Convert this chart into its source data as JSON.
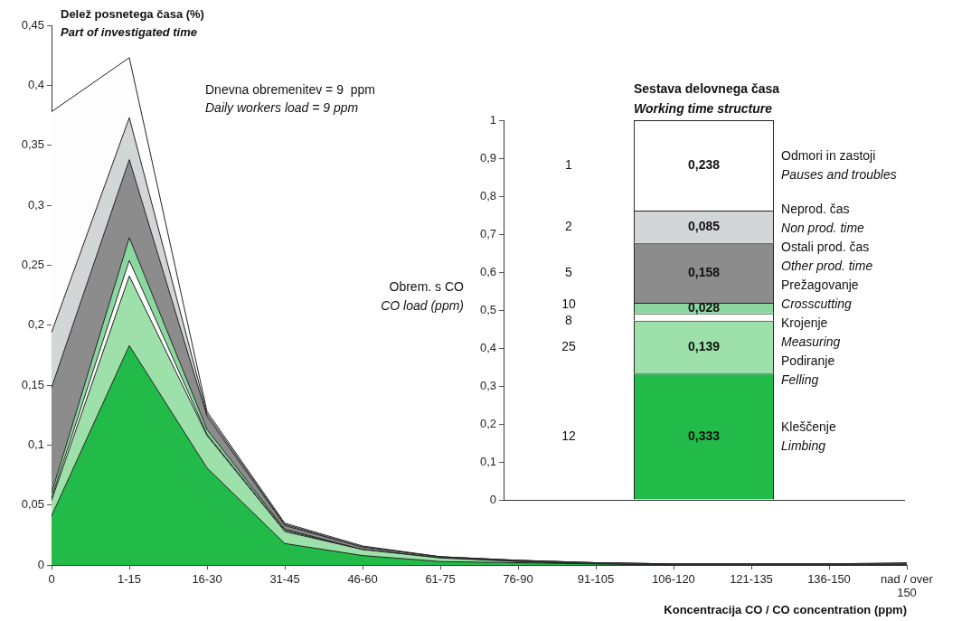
{
  "chart_data": [
    {
      "type": "area",
      "stacked": true,
      "ylabel": "Delež posnetega časa (%)\nPart of investigated time",
      "xlabel": "Koncentracija CO / CO concentration (ppm)",
      "categories": [
        "0",
        "1-15",
        "16-30",
        "31-45",
        "46-60",
        "61-75",
        "76-90",
        "91-105",
        "106-120",
        "121-135",
        "136-150",
        "nad / over 150"
      ],
      "series": [
        {
          "color": "#22bb4a",
          "values": [
            0.041,
            0.183,
            0.081,
            0.018,
            0.008,
            0.003,
            0.002,
            0.001,
            0,
            0,
            0,
            0
          ]
        },
        {
          "color": "#9de0a9",
          "values": [
            0.013,
            0.058,
            0.027,
            0.01,
            0.005,
            0.003,
            0.001,
            0,
            0,
            0,
            0,
            0
          ]
        },
        {
          "color": "#ffffff",
          "values": [
            0.002,
            0.013,
            0.001,
            0.001,
            0,
            0,
            0,
            0,
            0,
            0,
            0,
            0
          ]
        },
        {
          "color": "#8ad8a0",
          "values": [
            0.004,
            0.019,
            0.004,
            0.001,
            0,
            0,
            0,
            0,
            0,
            0,
            0,
            0
          ]
        },
        {
          "color": "#8c8c8c",
          "values": [
            0.088,
            0.065,
            0.011,
            0.003,
            0.002,
            0.001,
            0.001,
            0.001,
            0.001,
            0.001,
            0.001,
            0.001
          ]
        },
        {
          "color": "#d3d6d6",
          "values": [
            0.046,
            0.035,
            0.002,
            0.001,
            0,
            0,
            0,
            0,
            0,
            0,
            0,
            0
          ]
        },
        {
          "color": "#fdfdfd",
          "values": [
            0.184,
            0.05,
            0.002,
            0.001,
            0.001,
            0,
            0,
            0,
            0,
            0,
            0,
            0.001
          ]
        }
      ],
      "ylim": [
        0,
        0.45
      ],
      "yticks": [
        {
          "value": 0,
          "label": "0"
        },
        {
          "value": 0.05,
          "label": "0,05"
        },
        {
          "value": 0.1,
          "label": "0,1"
        },
        {
          "value": 0.15,
          "label": "0,15"
        },
        {
          "value": 0.2,
          "label": "0,2"
        },
        {
          "value": 0.25,
          "label": "0,25"
        },
        {
          "value": 0.3,
          "label": "0,3"
        },
        {
          "value": 0.35,
          "label": "0,35"
        },
        {
          "value": 0.4,
          "label": "0,4"
        },
        {
          "value": 0.45,
          "label": "0,45"
        }
      ],
      "annotations": [
        "Dnevna obremenitev = 9  ppm\nDaily workers load = 9 ppm"
      ],
      "grid": false,
      "legend": false
    },
    {
      "type": "bar",
      "stacked": true,
      "title": "Sestava delovnega časa\nWorking time structure",
      "categories": [
        null
      ],
      "series": [
        {
          "name": "Kleščenje\nLimbing",
          "color": "#22bb4a",
          "values": [
            0.333
          ],
          "value_labels": [
            "0,333"
          ]
        },
        {
          "name": "Podiranje\nFelling",
          "color": "#9de0a9",
          "values": [
            0.139
          ],
          "value_labels": [
            "0,139"
          ]
        },
        {
          "name": "Krojenje\nMeasuring",
          "color": "#ffffff",
          "values": [
            0.019
          ],
          "value_labels": [
            null
          ]
        },
        {
          "name": "Prežagovanje\nCrosscutting",
          "color": "#8ad8a0",
          "values": [
            0.028
          ],
          "value_labels": [
            "0,028"
          ]
        },
        {
          "name": "Ostali prod. čas\nOther prod. time",
          "color": "#8c8c8c",
          "values": [
            0.158
          ],
          "value_labels": [
            "0,158"
          ]
        },
        {
          "name": "Neprod. čas\nNon prod. time",
          "color": "#d3d6d6",
          "values": [
            0.085
          ],
          "value_labels": [
            "0,085"
          ]
        },
        {
          "name": "Odmori in zastoji\nPauses and troubles",
          "color": "#ffffff",
          "values": [
            0.238
          ],
          "value_labels": [
            "0,238"
          ]
        }
      ],
      "ylim": [
        0,
        1
      ],
      "yticks": [
        {
          "value": 0,
          "label": "0"
        },
        {
          "value": 0.1,
          "label": "0,1"
        },
        {
          "value": 0.2,
          "label": "0,2"
        },
        {
          "value": 0.3,
          "label": "0,3"
        },
        {
          "value": 0.4,
          "label": "0,4"
        },
        {
          "value": 0.5,
          "label": "0,5"
        },
        {
          "value": 0.6,
          "label": "0,6"
        },
        {
          "value": 0.7,
          "label": "0,7"
        },
        {
          "value": 0.8,
          "label": "0,8"
        },
        {
          "value": 0.9,
          "label": "0,9"
        },
        {
          "value": 1,
          "label": "1"
        }
      ],
      "annotations": [
        "Obrem. s CO\nCO load (ppm)",
        "12",
        "25",
        "8",
        "10",
        "5",
        "2",
        "1"
      ],
      "grid": false,
      "legend": false
    }
  ]
}
